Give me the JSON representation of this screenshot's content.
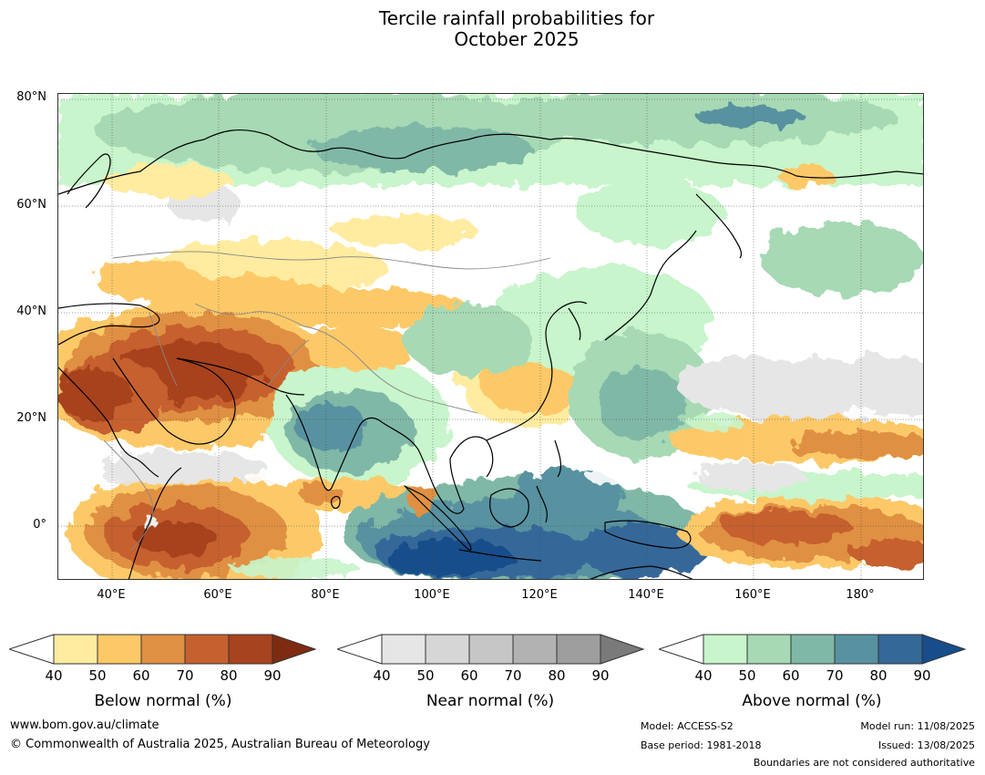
{
  "title": {
    "line1": "Tercile rainfall probabilities for",
    "line2": "October 2025"
  },
  "map": {
    "lat_labels": [
      "80°N",
      "60°N",
      "40°N",
      "20°N",
      "0°"
    ],
    "lon_labels": [
      "40°E",
      "60°E",
      "80°E",
      "100°E",
      "120°E",
      "140°E",
      "160°E",
      "180°"
    ],
    "extent": {
      "lon_min": 30,
      "lon_max": 192,
      "lat_min": -10,
      "lat_max": 81
    }
  },
  "colorbars": {
    "below": {
      "title": "Below normal (%)",
      "ticks": [
        "40",
        "50",
        "60",
        "70",
        "80",
        "90"
      ],
      "colors": [
        "#ffeca0",
        "#fdc967",
        "#e09043",
        "#c6612f",
        "#a8431f",
        "#7e2b12"
      ]
    },
    "near": {
      "title": "Near normal (%)",
      "ticks": [
        "40",
        "50",
        "60",
        "70",
        "80",
        "90"
      ],
      "colors": [
        "#e6e6e6",
        "#d6d6d6",
        "#c6c6c6",
        "#b2b2b2",
        "#9e9e9e",
        "#7a7a7a"
      ]
    },
    "above": {
      "title": "Above normal (%)",
      "ticks": [
        "40",
        "50",
        "60",
        "70",
        "80",
        "90"
      ],
      "colors": [
        "#c8f5cb",
        "#a6d9b4",
        "#80b8a7",
        "#5892a0",
        "#346899",
        "#174d8a"
      ]
    }
  },
  "footer": {
    "website": "www.bom.gov.au/climate",
    "copyright": "© Commonwealth of Australia 2025, Australian Bureau of Meteorology",
    "model": "Model: ACCESS-S2",
    "base_period": "Base period: 1981-2018",
    "model_run": "Model run: 11/08/2025",
    "issued": "Issued: 13/08/2025",
    "boundaries_note": "Boundaries are not considered authoritative"
  }
}
